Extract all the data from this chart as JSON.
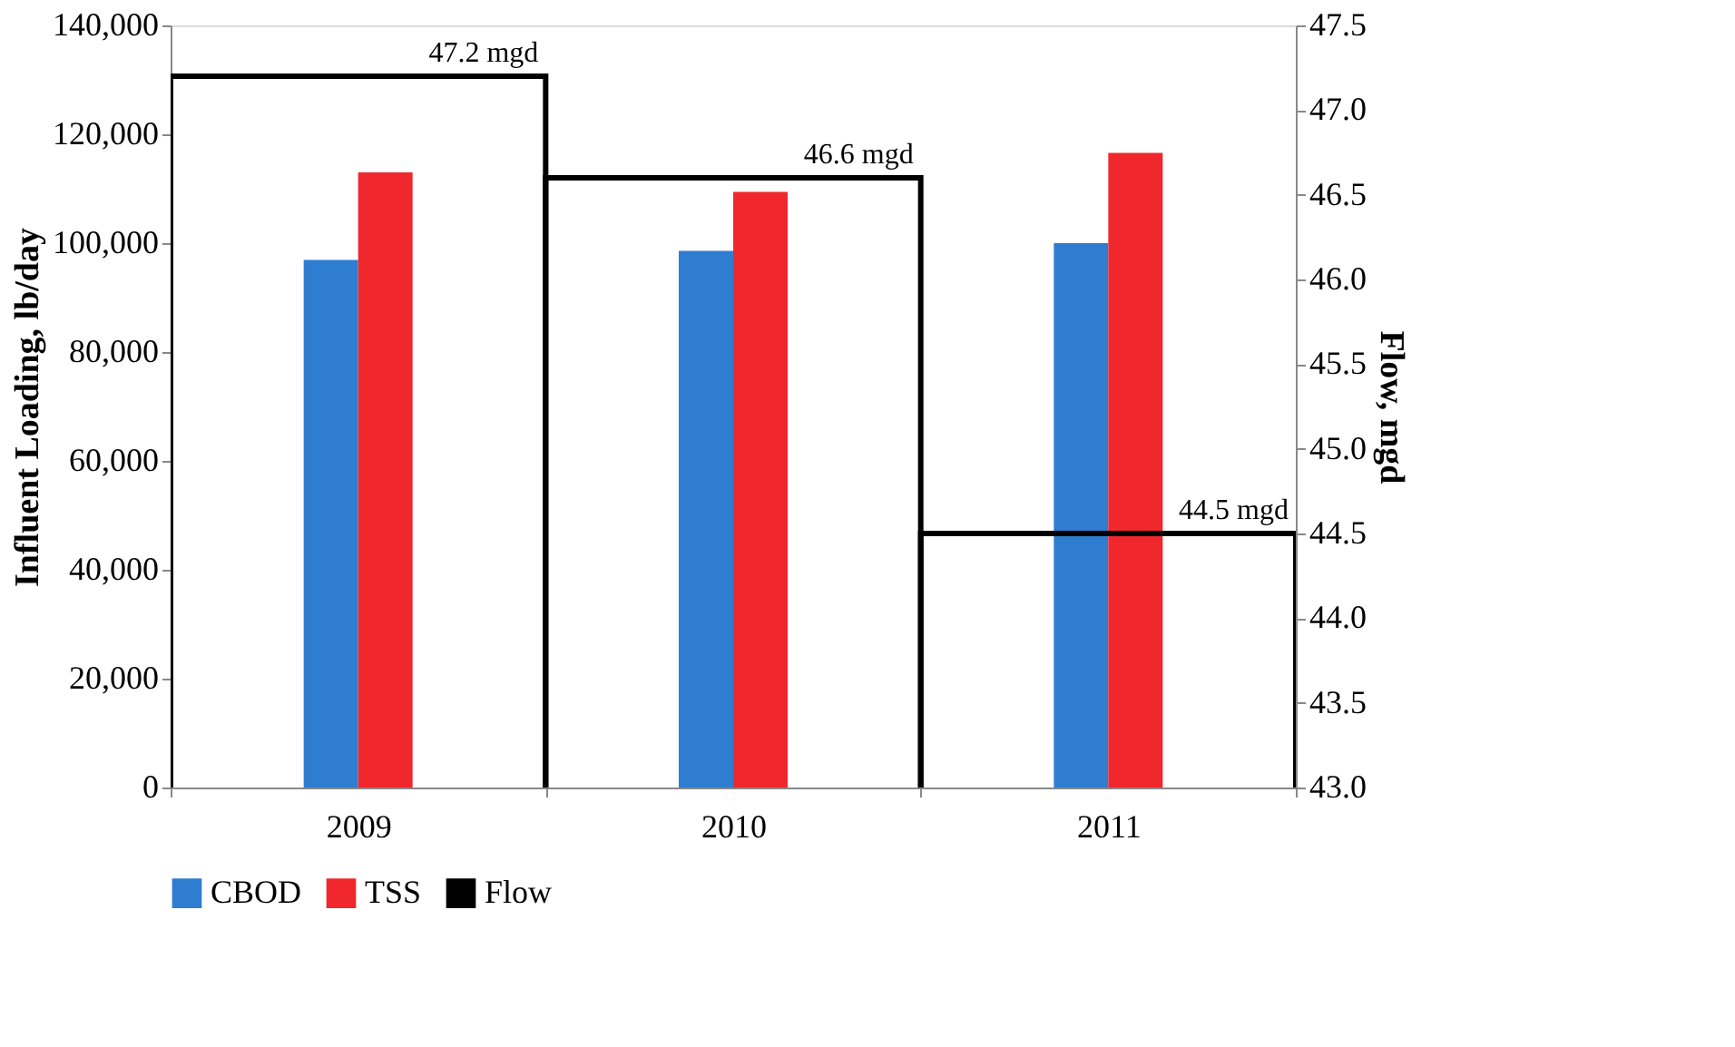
{
  "chart_data": {
    "type": "bar",
    "categories": [
      "2009",
      "2010",
      "2011"
    ],
    "ylabel": "Influent Loading, lb/day",
    "y2label": "Flow, mgd",
    "ylim": [
      0,
      140000
    ],
    "yticks": [
      {
        "value": 0,
        "label": "0"
      },
      {
        "value": 20000,
        "label": "20,000"
      },
      {
        "value": 40000,
        "label": "40,000"
      },
      {
        "value": 60000,
        "label": "60,000"
      },
      {
        "value": 80000,
        "label": "80,000"
      },
      {
        "value": 100000,
        "label": "100,000"
      },
      {
        "value": 120000,
        "label": "120,000"
      },
      {
        "value": 140000,
        "label": "140,000"
      }
    ],
    "y2lim": [
      43,
      47.5
    ],
    "y2ticks": [
      {
        "value": 43,
        "label": "43.0"
      },
      {
        "value": 43.5,
        "label": "43.5"
      },
      {
        "value": 44,
        "label": "44.0"
      },
      {
        "value": 44.5,
        "label": "44.5"
      },
      {
        "value": 45,
        "label": "45.0"
      },
      {
        "value": 45.5,
        "label": "45.5"
      },
      {
        "value": 46,
        "label": "46.0"
      },
      {
        "value": 46.5,
        "label": "46.5"
      },
      {
        "value": 47,
        "label": "47.0"
      },
      {
        "value": 47.5,
        "label": "47.5"
      }
    ],
    "series": [
      {
        "name": "CBOD",
        "color": "#2e7dd1",
        "values": [
          96900,
          98600,
          100000
        ]
      },
      {
        "name": "TSS",
        "color": "#f0282d",
        "values": [
          113000,
          109400,
          116600
        ]
      },
      {
        "name": "Flow",
        "color": "#000000",
        "axis": "y2",
        "values": [
          47.2,
          46.6,
          44.5
        ],
        "value_labels": [
          "47.2 mgd",
          "46.6 mgd",
          "44.5 mgd"
        ]
      }
    ],
    "legend": "bottom",
    "grid": false
  }
}
